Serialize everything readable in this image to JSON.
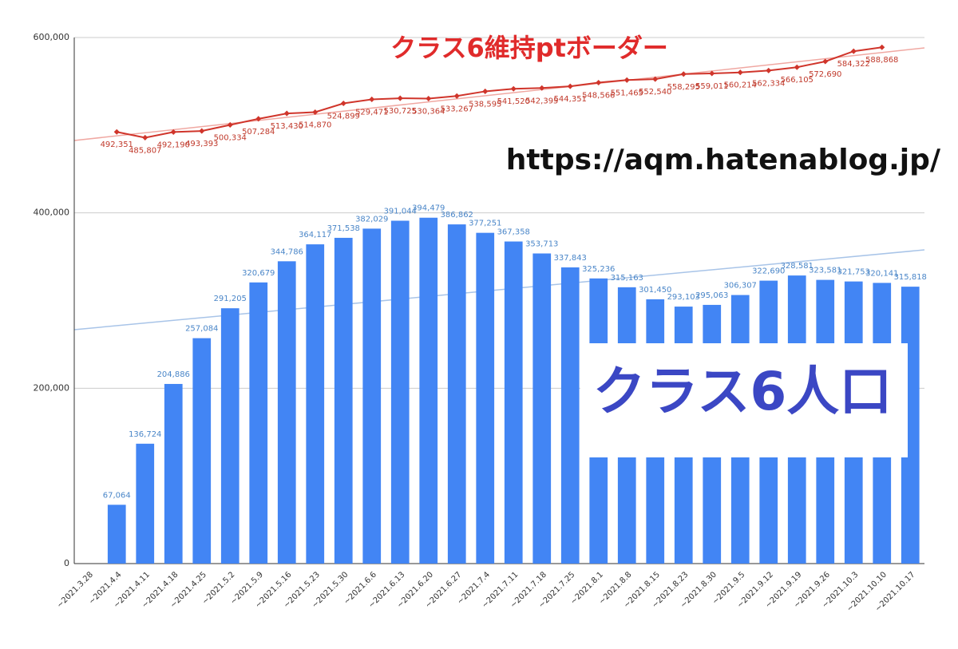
{
  "chart_data": {
    "type": "bar+line",
    "title": "クラス6維持ptボーダー",
    "annotations": [
      "https://aqm.hatenablog.jp/",
      "クラス6人口"
    ],
    "categories": [
      "~2021.3.28",
      "~2021.4.4",
      "~2021.4.11",
      "~2021.4.18",
      "~2021.4.25",
      "~2021.5.2",
      "~2021.5.9",
      "~2021.5.16",
      "~2021.5.23",
      "~2021.5.30",
      "~2021.6.6",
      "~2021.6.13",
      "~2021.6.20",
      "~2021.6.27",
      "~2021.7.4",
      "~2021.7.11",
      "~2021.7.18",
      "~2021.7.25",
      "~2021.8.1",
      "~2021.8.8",
      "~2021.8.15",
      "~2021.8.23",
      "~2021.8.30",
      "~2021.9.5",
      "~2021.9.12",
      "~2021.9.19",
      "~2021.9.26",
      "~2021.10.3",
      "~2021.10.10",
      "~2021.10.17"
    ],
    "series": [
      {
        "type": "bar",
        "color": "#4285f4",
        "values": [
          null,
          67064,
          136724,
          204886,
          257084,
          291205,
          320679,
          344786,
          364117,
          371538,
          382029,
          391044,
          394479,
          386862,
          377251,
          367358,
          353713,
          337843,
          325236,
          315163,
          301450,
          293103,
          295063,
          306307,
          322690,
          328581,
          323581,
          321753,
          320141,
          315818
        ],
        "value_labels": [
          null,
          "67,064",
          "136,724",
          "204,886",
          "257,084",
          "291,205",
          "320,679",
          "344,786",
          "364,117",
          "371,538",
          "382,029",
          "391,044",
          "394,479",
          "386,862",
          "377,251",
          "367,358",
          "353,713",
          "337,843",
          "325,236",
          "315,163",
          "301,450",
          "293,103",
          "295,063",
          "306,307",
          "322,690",
          "328,581",
          "323,581",
          "321,753",
          "320,141",
          "315,818"
        ]
      },
      {
        "type": "line",
        "color": "#d0352b",
        "values": [
          null,
          492351,
          485807,
          492190,
          493393,
          500334,
          507284,
          513430,
          514870,
          524899,
          529471,
          530725,
          530364,
          533267,
          538595,
          541520,
          542395,
          544351,
          548566,
          551465,
          552540,
          558295,
          559011,
          560214,
          562334,
          566105,
          572690,
          584322,
          588868,
          null
        ],
        "value_labels": [
          null,
          "492,351",
          "485,807",
          "492,190",
          "493,393",
          "500,334",
          "507,284",
          "513,430",
          "514,870",
          "524,899",
          "529,471",
          "530,725",
          "530,364",
          "533,267",
          "538,595",
          "541,520",
          "542,395",
          "544,351",
          "548,566",
          "551,465",
          "552,540",
          "558,295",
          "559,011",
          "560,214",
          "562,334",
          "566,105",
          "572,690",
          "584,322",
          "588,868",
          null
        ]
      }
    ],
    "ylim": [
      0,
      600000
    ],
    "yticks": [
      {
        "value": 0,
        "label": "0"
      },
      {
        "value": 200000,
        "label": "200,000"
      },
      {
        "value": 400000,
        "label": "400,000"
      },
      {
        "value": 600000,
        "label": "600,000"
      }
    ],
    "grid": true
  }
}
